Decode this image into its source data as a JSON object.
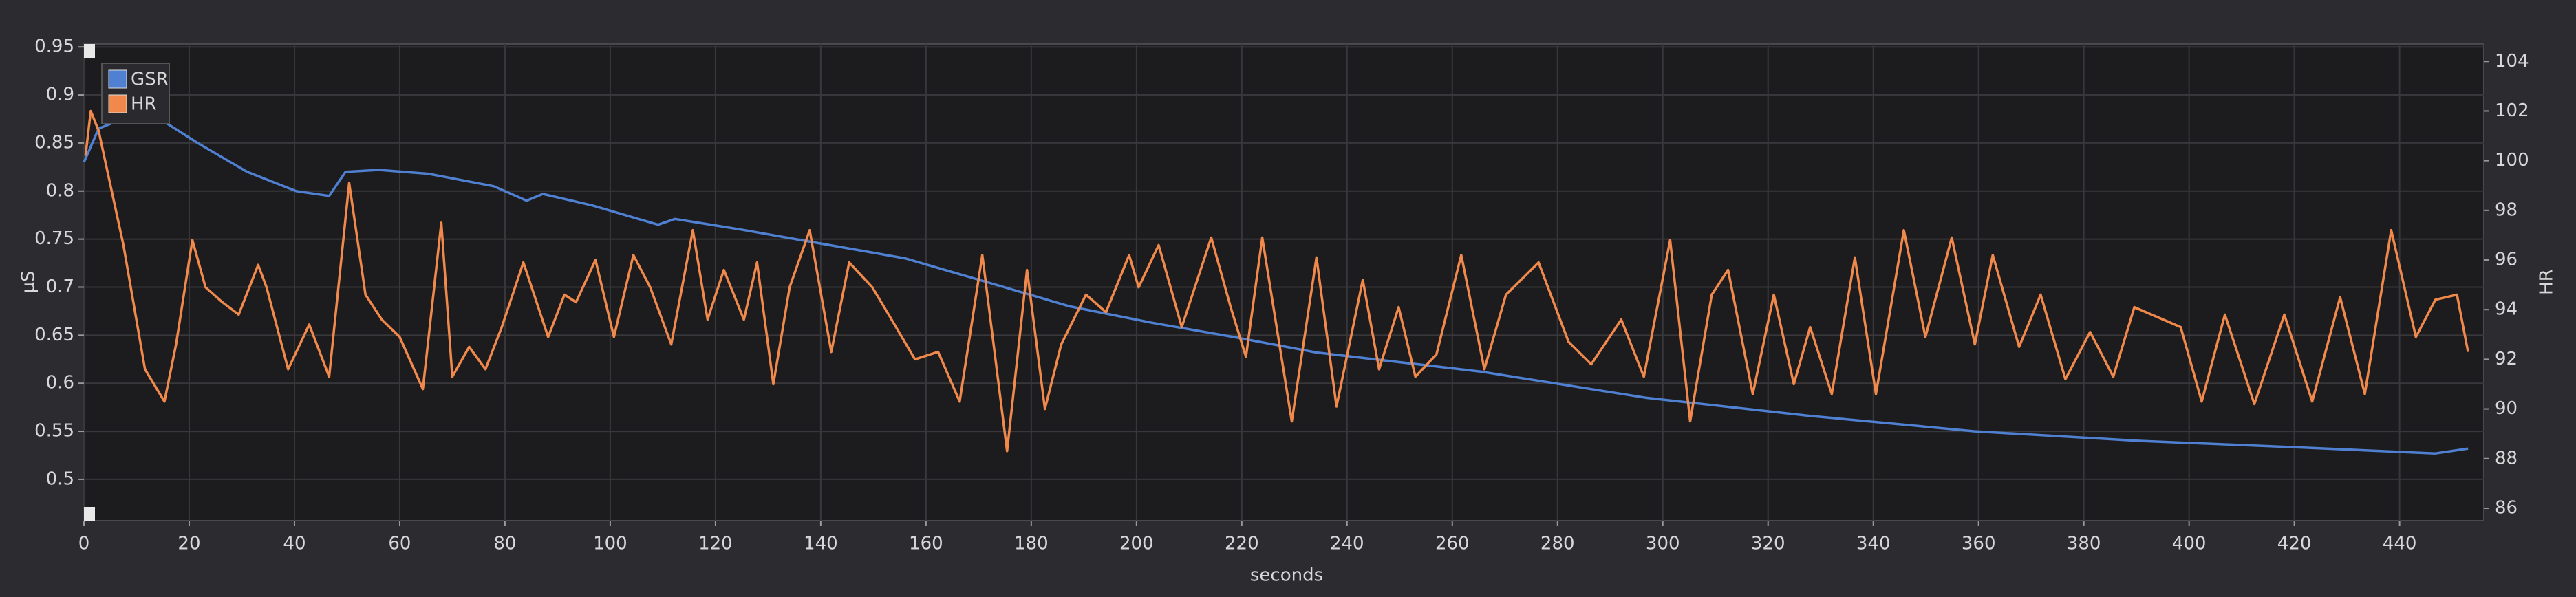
{
  "chart_data": {
    "type": "line",
    "xlabel": "seconds",
    "ylabel": "µS",
    "y2label": "HR",
    "xlim": [
      0,
      456
    ],
    "ylim": [
      0.457,
      0.953
    ],
    "y2lim": [
      85.5,
      104.7
    ],
    "xticks": [
      0,
      20,
      40,
      60,
      80,
      100,
      120,
      140,
      160,
      180,
      200,
      220,
      240,
      260,
      280,
      300,
      320,
      340,
      360,
      380,
      400,
      420,
      440
    ],
    "yticks": [
      0.5,
      0.55,
      0.6,
      0.65,
      0.7,
      0.75,
      0.8,
      0.85,
      0.9,
      0.95
    ],
    "y2ticks": [
      86,
      88,
      90,
      92,
      94,
      96,
      98,
      100,
      102,
      104
    ],
    "grid": true,
    "legend": "upper left",
    "series": [
      {
        "name": "GSR",
        "color": "#4f80d2",
        "axis": "y",
        "x": [
          0,
          2.8,
          5.9,
          15.3,
          21.6,
          31,
          40.3,
          46.6,
          49.7,
          56,
          65.4,
          77.9,
          84.1,
          87.2,
          96.6,
          109.1,
          112.3,
          124.8,
          140.4,
          156,
          171.7,
          187.3,
          202.9,
          218.6,
          234.2,
          265.5,
          296.7,
          328,
          359.3,
          390.6,
          421.8,
          446.8,
          453
        ],
        "values": [
          0.83,
          0.865,
          0.872,
          0.872,
          0.85,
          0.82,
          0.8,
          0.795,
          0.82,
          0.822,
          0.818,
          0.805,
          0.79,
          0.797,
          0.785,
          0.765,
          0.771,
          0.76,
          0.745,
          0.73,
          0.705,
          0.68,
          0.663,
          0.648,
          0.632,
          0.612,
          0.585,
          0.566,
          0.55,
          0.54,
          0.533,
          0.527,
          0.532
        ]
      },
      {
        "name": "HR",
        "color": "#f0894b",
        "axis": "y2",
        "x": [
          0.3,
          1.3,
          2.8,
          7.5,
          11.6,
          15.3,
          17.5,
          20.6,
          23.1,
          26.3,
          29.4,
          33.1,
          34.7,
          38.8,
          42.8,
          46.6,
          50.4,
          53.5,
          56.6,
          60,
          64.4,
          67.9,
          70,
          73.2,
          76.3,
          79.4,
          83.5,
          88.2,
          91.3,
          93.5,
          97.2,
          100.7,
          104.4,
          107.6,
          111.6,
          115.7,
          118.5,
          121.6,
          125.4,
          127.9,
          131,
          134.1,
          137.9,
          142,
          145.4,
          149.8,
          152.9,
          157.9,
          162.3,
          166.4,
          170.7,
          175.4,
          179.2,
          182.6,
          185.7,
          190.4,
          194.2,
          198.6,
          200.4,
          204.2,
          208.6,
          214.2,
          217.9,
          220.8,
          223.9,
          229.5,
          234.2,
          238,
          243,
          246.1,
          249.8,
          253,
          257,
          261.7,
          266.1,
          270.2,
          276.4,
          282.1,
          286.4,
          292.1,
          296.4,
          301.4,
          305.2,
          309.3,
          312.4,
          317.1,
          321.1,
          324.9,
          328,
          332.1,
          336.5,
          340.5,
          345.8,
          349.9,
          354.9,
          359.3,
          362.7,
          367.7,
          371.8,
          376.5,
          381.2,
          385.6,
          389.6,
          398.4,
          402.4,
          406.8,
          412.4,
          418.1,
          423.4,
          428.7,
          433.4,
          438.4,
          443.1,
          446.8,
          450.9,
          453
        ],
        "values": [
          100.2,
          102,
          101.2,
          96.6,
          91.6,
          90.3,
          92.6,
          96.8,
          94.9,
          94.3,
          93.8,
          95.8,
          94.9,
          91.6,
          93.4,
          91.3,
          99.1,
          94.6,
          93.6,
          92.9,
          90.8,
          97.5,
          91.3,
          92.5,
          91.6,
          93.3,
          95.9,
          92.9,
          94.6,
          94.3,
          96,
          92.9,
          96.2,
          94.9,
          92.6,
          97.2,
          93.6,
          95.6,
          93.6,
          95.9,
          91,
          94.9,
          97.2,
          92.3,
          95.9,
          94.9,
          93.8,
          92,
          92.3,
          90.3,
          96.2,
          88.3,
          95.6,
          90,
          92.6,
          94.6,
          93.9,
          96.2,
          94.9,
          96.6,
          93.3,
          96.9,
          94.1,
          92.1,
          96.9,
          89.5,
          96.1,
          90.1,
          95.2,
          91.6,
          94.1,
          91.3,
          92.2,
          96.2,
          91.6,
          94.6,
          95.9,
          92.7,
          91.8,
          93.6,
          91.3,
          96.8,
          89.5,
          94.6,
          95.6,
          90.6,
          94.6,
          91,
          93.3,
          90.6,
          96.1,
          90.6,
          97.2,
          92.9,
          96.9,
          92.6,
          96.2,
          92.5,
          94.6,
          91.2,
          93.1,
          91.3,
          94.1,
          93.3,
          90.3,
          93.8,
          90.2,
          93.8,
          90.3,
          94.5,
          90.6,
          97.2,
          92.9,
          94.4,
          94.6,
          92.3
        ]
      }
    ]
  }
}
